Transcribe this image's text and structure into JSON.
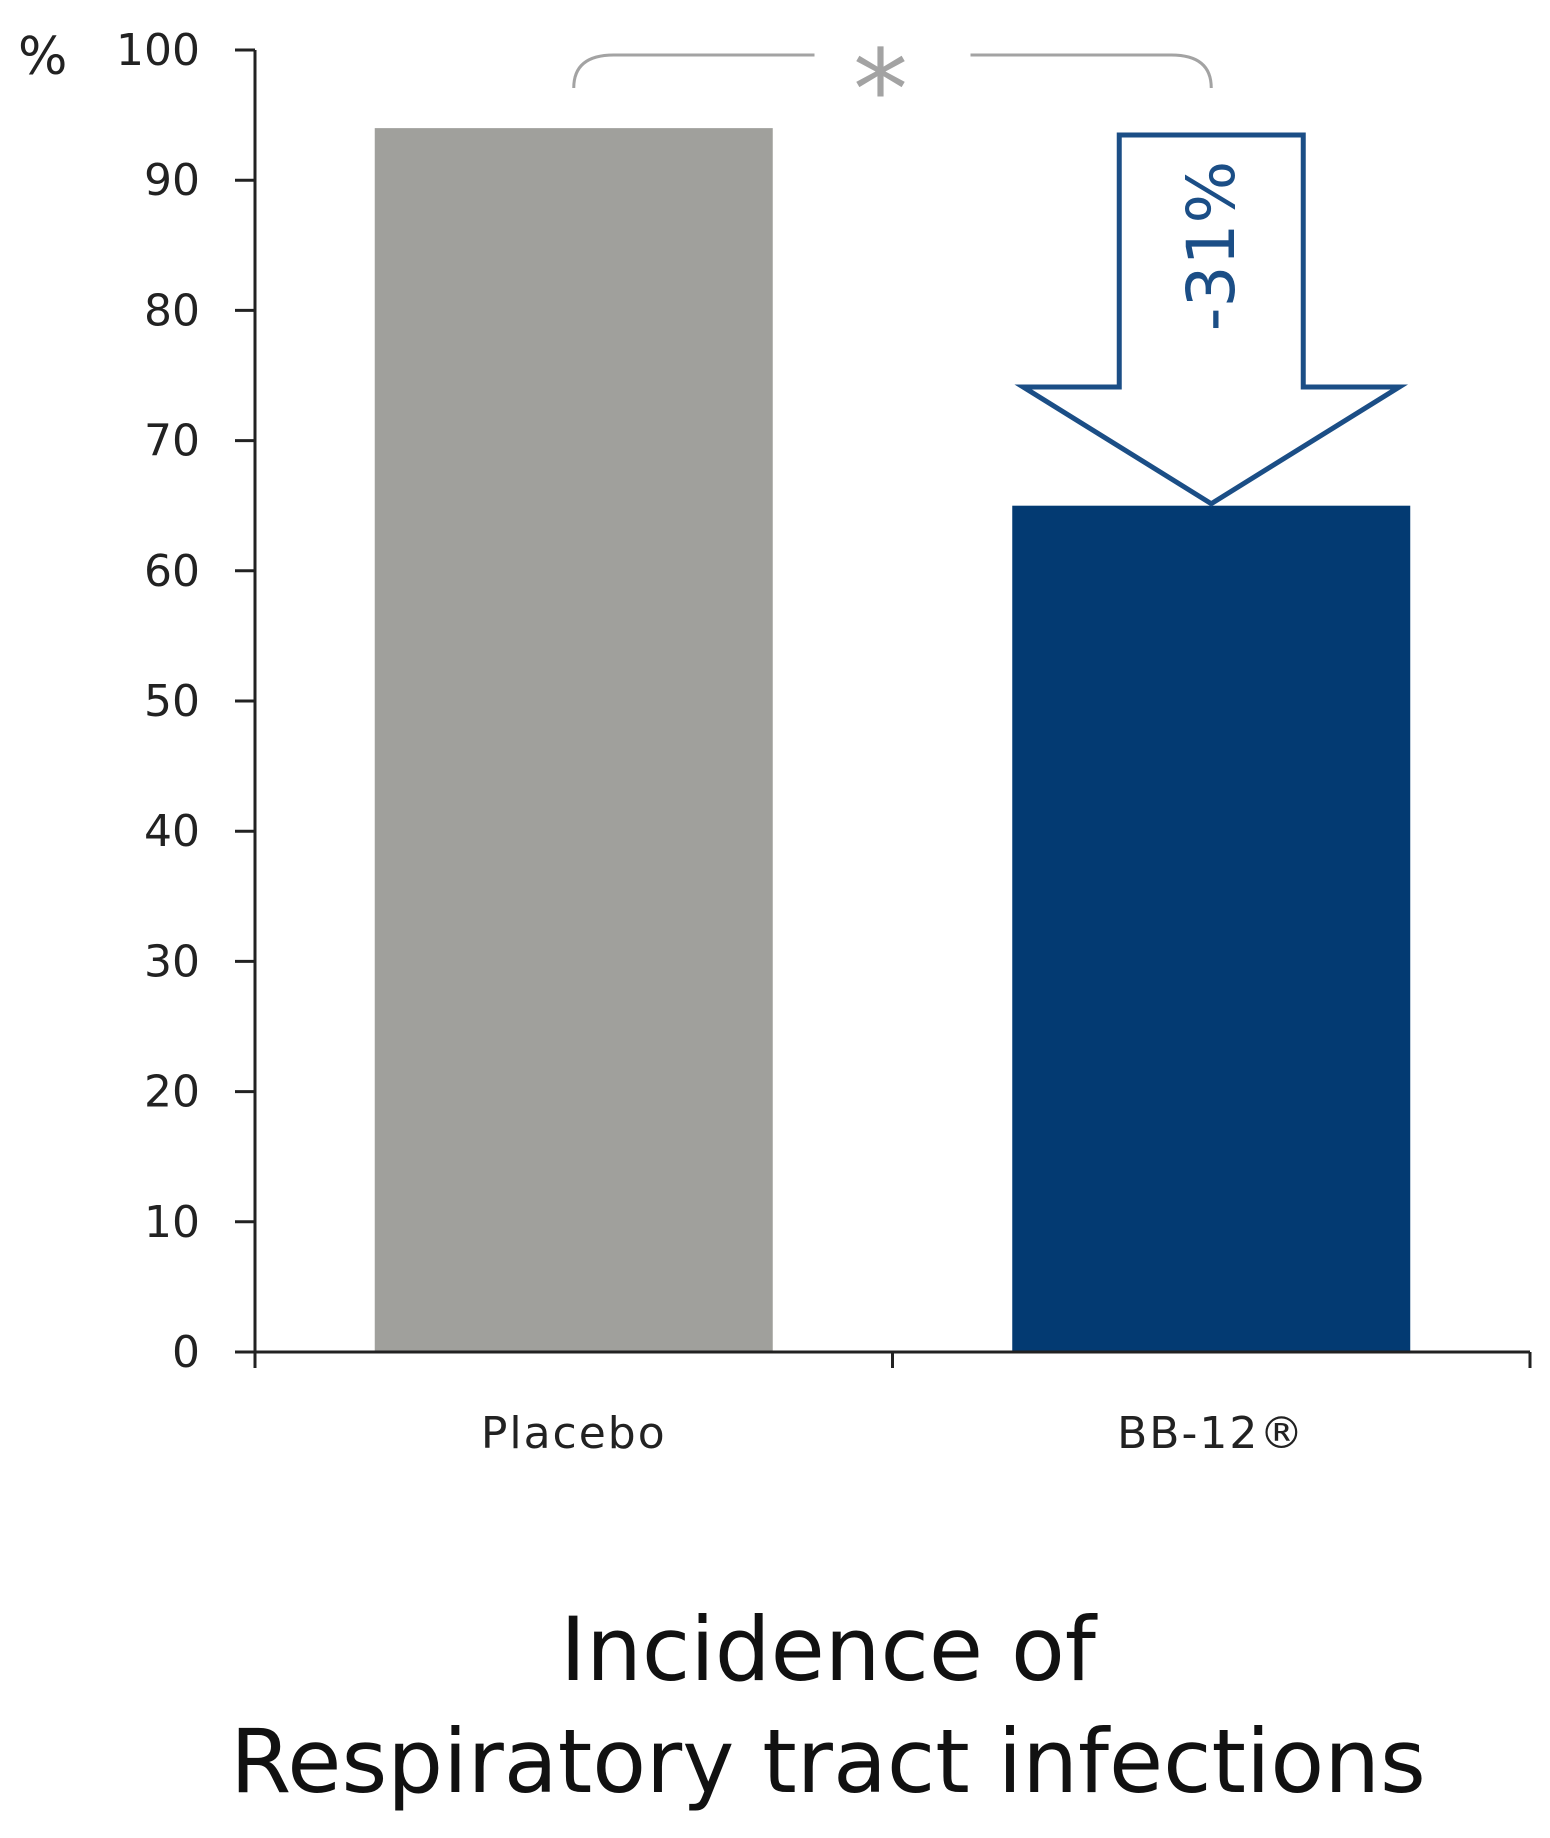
{
  "chart_data": {
    "type": "bar",
    "categories": [
      "Placebo",
      "BB-12®"
    ],
    "values": [
      94,
      65
    ],
    "colors": [
      "#a0a09c",
      "#033a72"
    ],
    "ylabel": "%",
    "ylim": [
      0,
      100
    ],
    "yticks": [
      0,
      10,
      20,
      30,
      40,
      50,
      60,
      70,
      80,
      90,
      100
    ],
    "grid": false,
    "legend": "none",
    "title_lines": [
      "Incidence of",
      "Respiratory tract infections"
    ],
    "annotations": {
      "reduction_label": "-31%",
      "significance_marker": "*",
      "arrow_color": "#1b4e86",
      "bracket_color": "#a3a3a3"
    }
  }
}
